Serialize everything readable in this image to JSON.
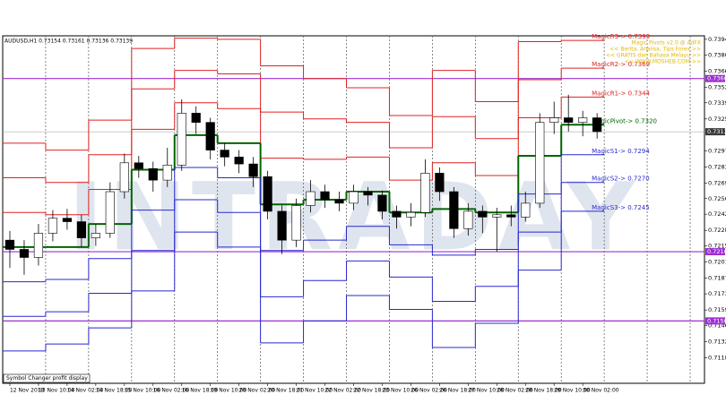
{
  "chart_data": {
    "type": "candlestick",
    "header": "AUDUSD,H1  0.73154 0.73161 0.73136 0.73139",
    "watermark": "INTRADAY",
    "note_box": "Symbol Changer profit display",
    "info_lines": [
      "Magic Pivots v2.0 @ AdFX",
      "<< Berita, Analisa, Tips Forex >>",
      "<< GRATIS dan Bahasa Melayu >>",
      "<< WWW.MOSHEB.COM >>"
    ],
    "xlim": [
      -0.5,
      48.5
    ],
    "xticks": [
      {
        "value": 0,
        "label": "12 Nov 2018"
      },
      {
        "value": 2,
        "label": "13 Nov 10:00"
      },
      {
        "value": 4,
        "label": "14 Nov 02:00"
      },
      {
        "value": 6,
        "label": "14 Nov 18:00"
      },
      {
        "value": 8,
        "label": "15 Nov 10:00"
      },
      {
        "value": 10,
        "label": "16 Nov 02:00"
      },
      {
        "value": 12,
        "label": "16 Nov 18:00"
      },
      {
        "value": 14,
        "label": "19 Nov 10:00"
      },
      {
        "value": 16,
        "label": "20 Nov 02:00"
      },
      {
        "value": 18,
        "label": "20 Nov 18:00"
      },
      {
        "value": 20,
        "label": "21 Nov 10:00"
      },
      {
        "value": 22,
        "label": "22 Nov 02:00"
      },
      {
        "value": 24,
        "label": "22 Nov 18:00"
      },
      {
        "value": 26,
        "label": "23 Nov 10:00"
      },
      {
        "value": 28,
        "label": "26 Nov 02:00"
      },
      {
        "value": 30,
        "label": "26 Nov 18:00"
      },
      {
        "value": 32,
        "label": "27 Nov 10:00"
      },
      {
        "value": 34,
        "label": "28 Nov 02:00"
      },
      {
        "value": 36,
        "label": "28 Nov 18:00"
      },
      {
        "value": 38,
        "label": "29 Nov 10:00"
      },
      {
        "value": 40,
        "label": "30 Nov 02:00"
      }
    ],
    "ylim": [
      0.7096,
      0.7397
    ],
    "yticks": [
      {
        "value": 0.7394,
        "label": "0.73940"
      },
      {
        "value": 0.73805,
        "label": "0.73805"
      },
      {
        "value": 0.73665,
        "label": "0.73665"
      },
      {
        "value": 0.73525,
        "label": "0.73525"
      },
      {
        "value": 0.7339,
        "label": "0.73390"
      },
      {
        "value": 0.7325,
        "label": "0.73250"
      },
      {
        "value": 0.72975,
        "label": "0.72975"
      },
      {
        "value": 0.72835,
        "label": "0.72835"
      },
      {
        "value": 0.72695,
        "label": "0.72695"
      },
      {
        "value": 0.7256,
        "label": "0.72560"
      },
      {
        "value": 0.72425,
        "label": "0.72425"
      },
      {
        "value": 0.72285,
        "label": "0.72285"
      },
      {
        "value": 0.7215,
        "label": "0.72150"
      },
      {
        "value": 0.7201,
        "label": "0.72010"
      },
      {
        "value": 0.7187,
        "label": "0.71870"
      },
      {
        "value": 0.71735,
        "label": "0.71735"
      },
      {
        "value": 0.71595,
        "label": "0.71595"
      },
      {
        "value": 0.7146,
        "label": "0.71460"
      },
      {
        "value": 0.7132,
        "label": "0.71320"
      },
      {
        "value": 0.7118,
        "label": "0.71180"
      }
    ],
    "bull_color": "#ffffff",
    "bear_color": "#000000",
    "open": [
      0.722,
      0.7212,
      0.7205,
      0.7226,
      0.7239,
      0.7236,
      0.7222,
      0.7226,
      0.7262,
      0.7287,
      0.7282,
      0.7272,
      0.7285,
      0.733,
      0.7322,
      0.7298,
      0.7292,
      0.7286,
      0.7275,
      0.7245,
      0.722,
      0.725,
      0.7262,
      0.7255,
      0.7252,
      0.7262,
      0.7259,
      0.7245,
      0.724,
      0.7244,
      0.7278,
      0.7262,
      0.723,
      0.7245,
      0.724,
      0.7242,
      0.724,
      0.7252,
      0.7322,
      0.7326,
      0.7322,
      0.7326
    ],
    "high": [
      0.7228,
      0.722,
      0.7234,
      0.7246,
      0.7247,
      0.7242,
      0.7234,
      0.727,
      0.7295,
      0.7293,
      0.7288,
      0.73,
      0.7342,
      0.7336,
      0.7326,
      0.7304,
      0.7298,
      0.7292,
      0.728,
      0.725,
      0.7256,
      0.7272,
      0.7268,
      0.7262,
      0.7268,
      0.7266,
      0.7263,
      0.725,
      0.7252,
      0.729,
      0.7283,
      0.7266,
      0.7252,
      0.725,
      0.7248,
      0.725,
      0.7262,
      0.733,
      0.734,
      0.7346,
      0.7332,
      0.733
    ],
    "low": [
      0.7196,
      0.719,
      0.7198,
      0.7219,
      0.7229,
      0.7214,
      0.7215,
      0.7222,
      0.7256,
      0.7274,
      0.7262,
      0.7266,
      0.728,
      0.7312,
      0.729,
      0.7284,
      0.7278,
      0.7266,
      0.7238,
      0.7208,
      0.7214,
      0.7244,
      0.7248,
      0.7245,
      0.7246,
      0.725,
      0.7238,
      0.723,
      0.7232,
      0.724,
      0.7254,
      0.7222,
      0.7224,
      0.7226,
      0.721,
      0.7232,
      0.7236,
      0.7248,
      0.7312,
      0.7314,
      0.731,
      0.7308
    ],
    "close": [
      0.7212,
      0.7205,
      0.7226,
      0.7239,
      0.7236,
      0.7222,
      0.7226,
      0.7262,
      0.7287,
      0.7282,
      0.7272,
      0.7285,
      0.733,
      0.7322,
      0.7298,
      0.7292,
      0.7286,
      0.7275,
      0.7245,
      0.722,
      0.725,
      0.7262,
      0.7255,
      0.7252,
      0.7262,
      0.7259,
      0.7245,
      0.724,
      0.7244,
      0.7278,
      0.7262,
      0.723,
      0.7245,
      0.724,
      0.7242,
      0.724,
      0.7252,
      0.7322,
      0.7326,
      0.7322,
      0.7326,
      0.7314
    ],
    "levels": [
      {
        "label": "MagicR3-> 0.7393",
        "color": "#e02020",
        "width": 1,
        "values": [
          0.7304,
          0.7298,
          0.7324,
          0.7386,
          0.7395,
          0.7394,
          0.7371,
          0.736,
          0.7352,
          0.7328,
          0.7367,
          0.734,
          0.7392,
          0.7393
        ]
      },
      {
        "label": "MagicR2-> 0.7369",
        "color": "#e02020",
        "width": 1,
        "values": [
          0.7274,
          0.727,
          0.7294,
          0.7351,
          0.7367,
          0.7364,
          0.7331,
          0.7325,
          0.7322,
          0.73,
          0.7327,
          0.7308,
          0.7359,
          0.7369
        ]
      },
      {
        "label": "MagicR1-> 0.7344",
        "color": "#e02020",
        "width": 1,
        "values": [
          0.7244,
          0.7242,
          0.7264,
          0.7316,
          0.7339,
          0.7334,
          0.7291,
          0.729,
          0.7292,
          0.7272,
          0.7287,
          0.7276,
          0.7326,
          0.7344
        ]
      },
      {
        "label": "MagicPivot-> 0.7320",
        "color": "#006400",
        "width": 2,
        "values": [
          0.7214,
          0.7214,
          0.7234,
          0.7281,
          0.7311,
          0.7304,
          0.7251,
          0.7255,
          0.7262,
          0.7244,
          0.7247,
          0.7244,
          0.7293,
          0.732
        ]
      },
      {
        "label": "MagicS1-> 0.7294",
        "color": "#2828d0",
        "width": 1,
        "values": [
          0.7184,
          0.7186,
          0.7204,
          0.7246,
          0.7283,
          0.7274,
          0.7211,
          0.722,
          0.7232,
          0.7216,
          0.7207,
          0.7212,
          0.726,
          0.7294
        ]
      },
      {
        "label": "MagicS2-> 0.7270",
        "color": "#2828d0",
        "width": 1,
        "values": [
          0.7154,
          0.7158,
          0.7174,
          0.7211,
          0.7255,
          0.7244,
          0.7171,
          0.7185,
          0.7202,
          0.7188,
          0.7167,
          0.718,
          0.7227,
          0.727
        ]
      },
      {
        "label": "MagicS3-> 0.7245",
        "color": "#2828d0",
        "width": 1,
        "values": [
          0.7124,
          0.713,
          0.7144,
          0.7176,
          0.7227,
          0.7214,
          0.7131,
          0.715,
          0.7172,
          0.716,
          0.7127,
          0.7148,
          0.7194,
          0.7245
        ]
      }
    ],
    "hlines": [
      {
        "value": 0.736,
        "label": "0.73600",
        "color": "#9b30d0"
      },
      {
        "value": 0.721,
        "label": "0.72100",
        "color": "#9b30d0"
      },
      {
        "value": 0.715,
        "label": "0.71500",
        "color": "#9b30d0"
      }
    ],
    "current": {
      "value": 0.73139,
      "label": "0.73139",
      "color": "#3a3a3a"
    }
  }
}
